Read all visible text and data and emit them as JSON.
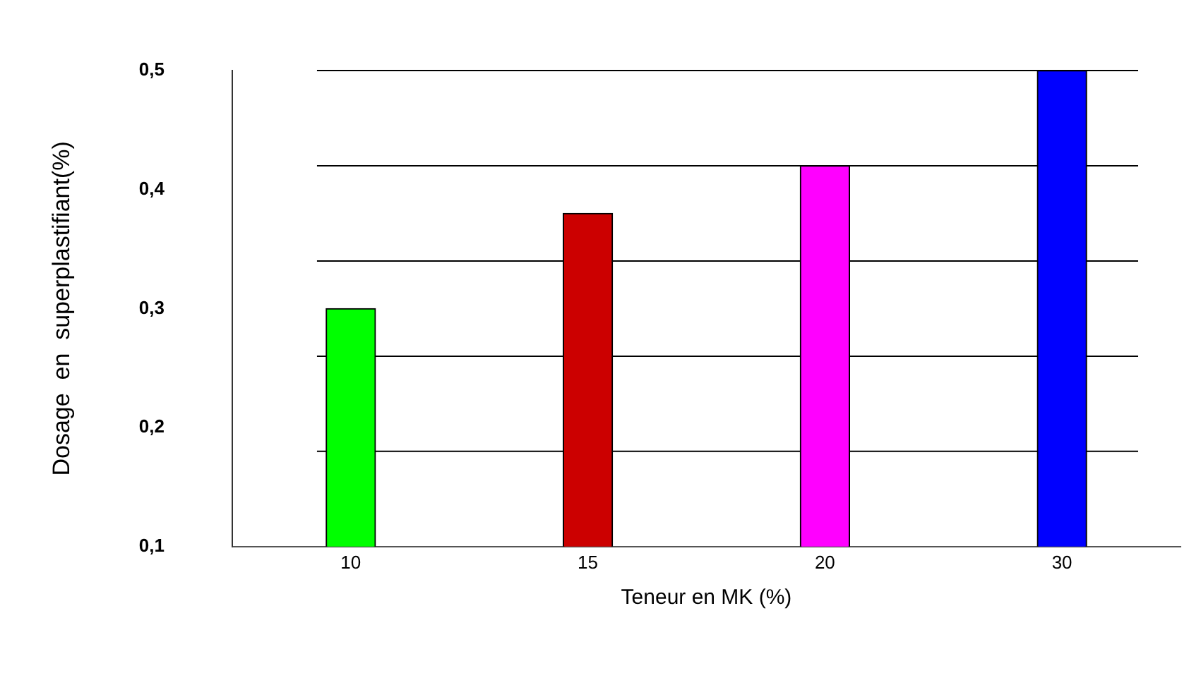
{
  "chart_data": {
    "type": "bar",
    "xlabel": "Teneur en MK (%)",
    "ylabel": "Dosage  en  superplastifiant(%)",
    "categories": [
      "10",
      "15",
      "20",
      "30"
    ],
    "values": [
      0.3,
      0.38,
      0.42,
      0.5
    ],
    "colors": [
      "#00ff00",
      "#cc0000",
      "#ff00ff",
      "#0000ff"
    ],
    "ylim": [
      0.1,
      0.5
    ],
    "yticks": [
      {
        "value": 0.1,
        "label": "0,1"
      },
      {
        "value": 0.2,
        "label": "0,2"
      },
      {
        "value": 0.3,
        "label": "0,3"
      },
      {
        "value": 0.4,
        "label": "0,4"
      },
      {
        "value": 0.5,
        "label": "0,5"
      }
    ],
    "ref_lines": [
      {
        "axis": "y",
        "value": 0.18
      },
      {
        "axis": "y",
        "value": 0.26
      },
      {
        "axis": "y",
        "value": 0.34
      },
      {
        "axis": "y",
        "value": 0.42
      },
      {
        "axis": "y",
        "value": 0.5
      }
    ],
    "legend": false
  }
}
